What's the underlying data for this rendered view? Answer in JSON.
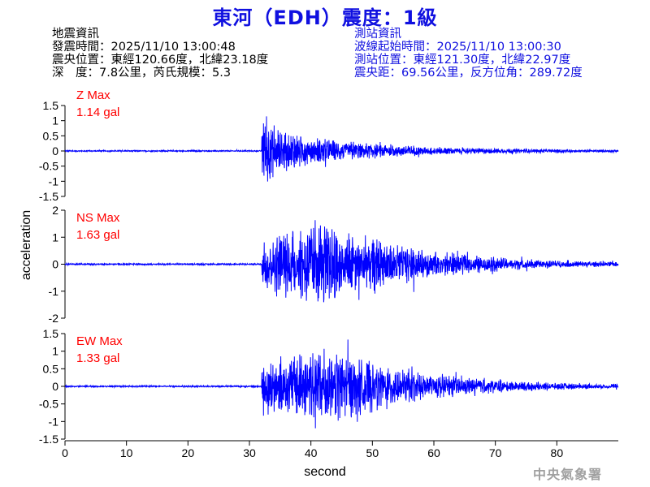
{
  "title": "東河（EDH）震度：1級",
  "quake_info": {
    "heading": "地震資訊",
    "time": "發震時間：2025/11/10 13:00:48",
    "epicenter": "震央位置：東經120.66度，北緯23.18度",
    "depth_mag": "深　度：7.8公里，芮氏規模：5.3"
  },
  "station_info": {
    "heading": "測站資訊",
    "wave_start": "波線起始時間：2025/11/10 13:00:30",
    "location": "測站位置：東經121.30度，北緯22.97度",
    "distance": "震央距：69.56公里，反方位角：289.72度"
  },
  "agency": "中央氣象署",
  "colors": {
    "trace": "#0000ff",
    "label": "#ff0000",
    "title": "#1010e0",
    "station_info": "#1010e0"
  },
  "chart_data": {
    "type": "line",
    "xlabel": "second",
    "ylabel": "acceleration",
    "xlim": [
      0,
      90
    ],
    "xticks": [
      "0",
      "10",
      "20",
      "30",
      "40",
      "50",
      "60",
      "70",
      "80"
    ],
    "grid": false,
    "onset_s": 32,
    "panels": [
      {
        "name": "Z Max",
        "value": "1.14 gal",
        "peak": 1.14,
        "ylim": [
          -1.5,
          1.5
        ],
        "yticks": [
          "1.5",
          "1",
          "0.5",
          "0",
          "-0.5",
          "-1",
          "-1.5"
        ]
      },
      {
        "name": "NS Max",
        "value": "1.63 gal",
        "peak": 1.63,
        "ylim": [
          -2,
          2
        ],
        "yticks": [
          "2",
          "1",
          "0",
          "-1",
          "-2"
        ]
      },
      {
        "name": "EW Max",
        "value": "1.33 gal",
        "peak": 1.33,
        "ylim": [
          -1.5,
          1.5
        ],
        "yticks": [
          "1.5",
          "1",
          "0.5",
          "0",
          "-0.5",
          "-1",
          "-1.5"
        ]
      }
    ]
  }
}
